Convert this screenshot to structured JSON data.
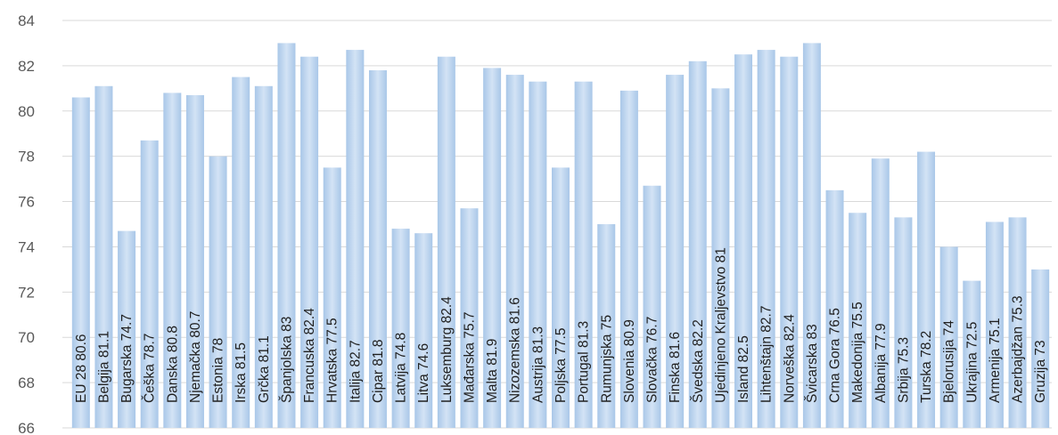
{
  "chart_data": {
    "type": "bar",
    "orientation": "vertical",
    "title": "",
    "xlabel": "",
    "ylabel": "",
    "ylim": [
      66,
      84
    ],
    "y_ticks": [
      66,
      68,
      70,
      72,
      74,
      76,
      78,
      80,
      82,
      84
    ],
    "grid": true,
    "legend": "none",
    "bar_color": "#bcd5ee",
    "categories": [
      "EU 28",
      "Belgija",
      "Bugarska",
      "Češka",
      "Danska",
      "Njemačka",
      "Estonia",
      "Irska",
      "Grčka",
      "Španjolska",
      "Francuska",
      "Hrvatska",
      "Italija",
      "Cipar",
      "Latvija",
      "Litva",
      "Luksemburg",
      "Mađarska",
      "Malta",
      "Nizozemska",
      "Austrija",
      "Poljska",
      "Portugal",
      "Rumunjska",
      "Slovenia",
      "Slovačka",
      "Finska",
      "Švedska",
      "Ujedinjeno Kraljevstvo",
      "Island",
      "Lihtenštajn",
      "Norveška",
      "Švicarska",
      "Crna Gora",
      "Makedonija",
      "Albanija",
      "Srbija",
      "Turska",
      "Bjelorusija",
      "Ukrajina",
      "Armenija",
      "Azerbajdžan",
      "Gruzija"
    ],
    "values": [
      80.6,
      81.1,
      74.7,
      78.7,
      80.8,
      80.7,
      78,
      81.5,
      81.1,
      83,
      82.4,
      77.5,
      82.7,
      81.8,
      74.8,
      74.6,
      82.4,
      75.7,
      81.9,
      81.6,
      81.3,
      77.5,
      81.3,
      75,
      80.9,
      76.7,
      81.6,
      82.2,
      81,
      82.5,
      82.7,
      82.4,
      83,
      76.5,
      75.5,
      77.9,
      75.3,
      78.2,
      74,
      72.5,
      75.1,
      75.3,
      73
    ],
    "data_labels": [
      "EU 28 80.6",
      "Belgija 81.1",
      "Bugarska 74.7",
      "Češka 78.7",
      "Danska 80.8",
      "Njemačka 80.7",
      "Estonia 78",
      "Irska 81.5",
      "Grčka 81.1",
      "Španjolska 83",
      "Francuska 82.4",
      "Hrvatska 77.5",
      "Italija 82.7",
      "Cipar 81.8",
      "Latvija 74.8",
      "Litva 74.6",
      "Luksemburg 82.4",
      "Mađarska 75.7",
      "Malta 81.9",
      "Nizozemska 81.6",
      "Austrija 81.3",
      "Poljska 77.5",
      "Portugal 81.3",
      "Rumunjska 75",
      "Slovenia 80.9",
      "Slovačka 76.7",
      "Finska 81.6",
      "Švedska 82.2",
      "Ujedinjeno Kraljevstvo 81",
      "Island 82.5",
      "Lihtenštajn 82.7",
      "Norveška 82.4",
      "Švicarska 83",
      "Crna Gora 76.5",
      "Makedonija 75.5",
      "Albanija 77.9",
      "Srbija 75.3",
      "Turska 78.2",
      "Bjelorusija 74",
      "Ukrajina 72.5",
      "Armenija 75.1",
      "Azerbajdžan 75.3",
      "Gruzija 73"
    ]
  }
}
